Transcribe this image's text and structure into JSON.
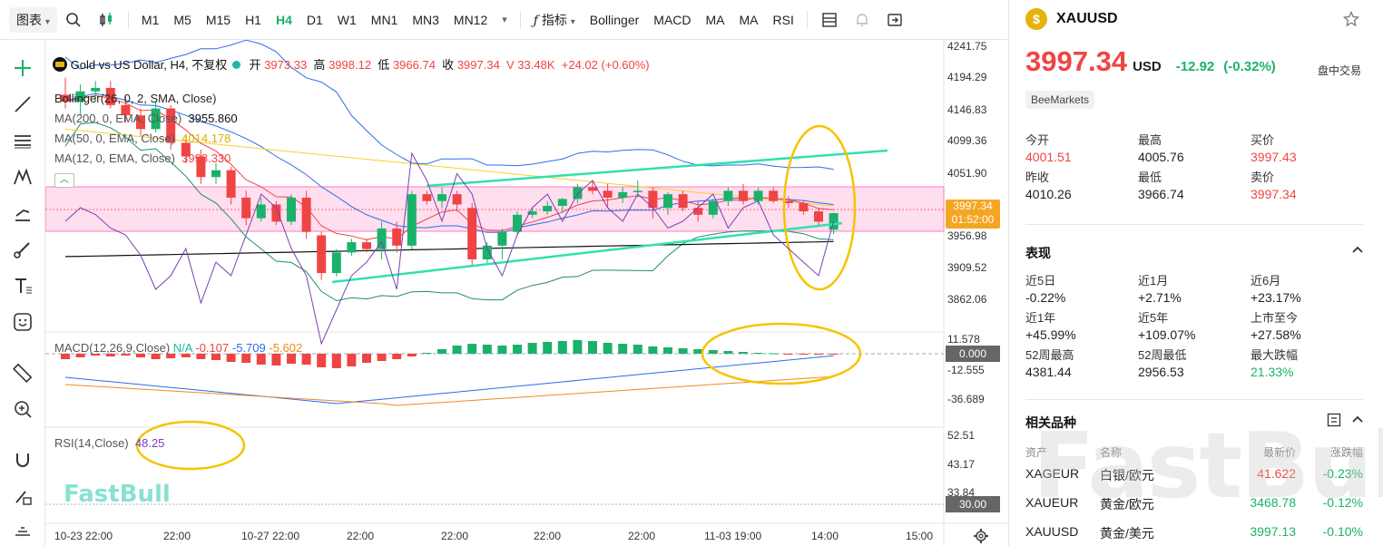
{
  "toolbar": {
    "chart_type": "图表",
    "timeframes": [
      "M1",
      "M5",
      "M15",
      "H1",
      "H4",
      "D1",
      "W1",
      "MN1",
      "MN3",
      "MN12"
    ],
    "active_timeframe": "H4",
    "indicators_label": "指标",
    "quick_indicators": [
      "Bollinger",
      "MACD",
      "MA",
      "MA",
      "RSI"
    ]
  },
  "legend": {
    "title": "Gold vs US Dollar, H4, 不复权",
    "open_label": "开",
    "open": "3973.33",
    "high_label": "高",
    "high": "3998.12",
    "low_label": "低",
    "low": "3966.74",
    "close_label": "收",
    "close": "3997.34",
    "volume": "V 33.48K",
    "change": "+24.02 (+0.60%)",
    "bollinger": "Bollinger(26, 0, 2, SMA, Close)",
    "ma200": "MA(200, 0, EMA, Close)",
    "ma200_val": "3955.860",
    "ma50": "MA(50, 0, EMA, Close)",
    "ma50_val": "4014.178",
    "ma12": "MA(12, 0, EMA, Close)",
    "ma12_val": "3998.330",
    "macd": "MACD(12,26,9,Close)",
    "macd_na": "N/A",
    "macd_hist": "-0.107",
    "macd_line": "-5.709",
    "macd_signal": "-5.602",
    "rsi": "RSI(14,Close)",
    "rsi_val": "48.25"
  },
  "price_axis": [
    "4241.75",
    "4194.29",
    "4146.83",
    "4099.36",
    "4051.90",
    "3956.98",
    "3909.52",
    "3862.06"
  ],
  "current_price_tag": "3997.34",
  "countdown": "01:52:00",
  "macd_axis": [
    "11.578",
    "-12.555",
    "-36.689"
  ],
  "macd_zero_tag": "0.000",
  "rsi_axis": [
    "52.51",
    "43.17",
    "33.84"
  ],
  "rsi_tag": "30.00",
  "time_axis": [
    "10-23 22:00",
    "22:00",
    "10-27 22:00",
    "22:00",
    "22:00",
    "22:00",
    "22:00",
    "11-03 19:00",
    "14:00",
    "15:00"
  ],
  "brand": "FastBull",
  "colors": {
    "up": "#1ab26b",
    "down": "#ef4444",
    "bollinger": "#2a6ee8",
    "ma200": "#111111",
    "ma50": "#f5d12b",
    "ma12": "#ef4444",
    "annotation_ellipse": "#f5c400",
    "trendline": "#2fe0b0"
  },
  "chart_data": {
    "type": "candlestick",
    "symbol": "XAUUSD",
    "timeframe": "H4",
    "candles": [
      [
        4170,
        4195,
        4150,
        4160
      ],
      [
        4160,
        4185,
        4140,
        4175
      ],
      [
        4175,
        4190,
        4160,
        4180
      ],
      [
        4180,
        4190,
        4150,
        4155
      ],
      [
        4155,
        4170,
        4130,
        4140
      ],
      [
        4140,
        4150,
        4110,
        4120
      ],
      [
        4120,
        4160,
        4115,
        4150
      ],
      [
        4150,
        4155,
        4090,
        4100
      ],
      [
        4100,
        4110,
        4070,
        4080
      ],
      [
        4080,
        4090,
        4040,
        4050
      ],
      [
        4050,
        4070,
        4040,
        4060
      ],
      [
        4060,
        4065,
        4010,
        4020
      ],
      [
        4020,
        4030,
        3980,
        3990
      ],
      [
        3990,
        4020,
        3985,
        4010
      ],
      [
        4010,
        4015,
        3980,
        3985
      ],
      [
        3985,
        4025,
        3980,
        4020
      ],
      [
        4020,
        4030,
        3960,
        3970
      ],
      [
        3965,
        3970,
        3900,
        3910
      ],
      [
        3910,
        3945,
        3905,
        3940
      ],
      [
        3940,
        3960,
        3935,
        3955
      ],
      [
        3955,
        3960,
        3940,
        3945
      ],
      [
        3945,
        3985,
        3930,
        3975
      ],
      [
        3975,
        3985,
        3940,
        3950
      ],
      [
        3950,
        4030,
        3945,
        4025
      ],
      [
        4025,
        4030,
        4010,
        4015
      ],
      [
        4015,
        4035,
        4005,
        4025
      ],
      [
        4025,
        4030,
        4000,
        4010
      ],
      [
        4005,
        4012,
        3920,
        3930
      ],
      [
        3930,
        3955,
        3925,
        3950
      ],
      [
        3950,
        3975,
        3930,
        3970
      ],
      [
        3970,
        4000,
        3965,
        3995
      ],
      [
        3995,
        4005,
        3990,
        4000
      ],
      [
        4000,
        4015,
        3995,
        4008
      ],
      [
        4008,
        4020,
        3998,
        4018
      ],
      [
        4018,
        4040,
        4012,
        4035
      ],
      [
        4035,
        4045,
        4025,
        4030
      ],
      [
        4030,
        4040,
        4005,
        4020
      ],
      [
        4020,
        4035,
        4012,
        4028
      ],
      [
        4028,
        4045,
        4020,
        4030
      ],
      [
        4030,
        4035,
        3990,
        4005
      ],
      [
        4005,
        4028,
        3995,
        4025
      ],
      [
        4025,
        4030,
        4000,
        4005
      ],
      [
        4005,
        4015,
        3985,
        3995
      ],
      [
        3995,
        4018,
        3990,
        4015
      ],
      [
        4015,
        4035,
        4008,
        4030
      ],
      [
        4030,
        4040,
        4010,
        4015
      ],
      [
        4015,
        4035,
        4010,
        4030
      ],
      [
        4030,
        4035,
        4012,
        4015
      ],
      [
        4015,
        4022,
        4005,
        4012
      ],
      [
        4012,
        4015,
        3995,
        4000
      ],
      [
        4000,
        4005,
        3980,
        3985
      ],
      [
        3973.33,
        3998.12,
        3966.74,
        3997.34
      ]
    ],
    "ylim": [
      3840,
      4250
    ]
  }
}
